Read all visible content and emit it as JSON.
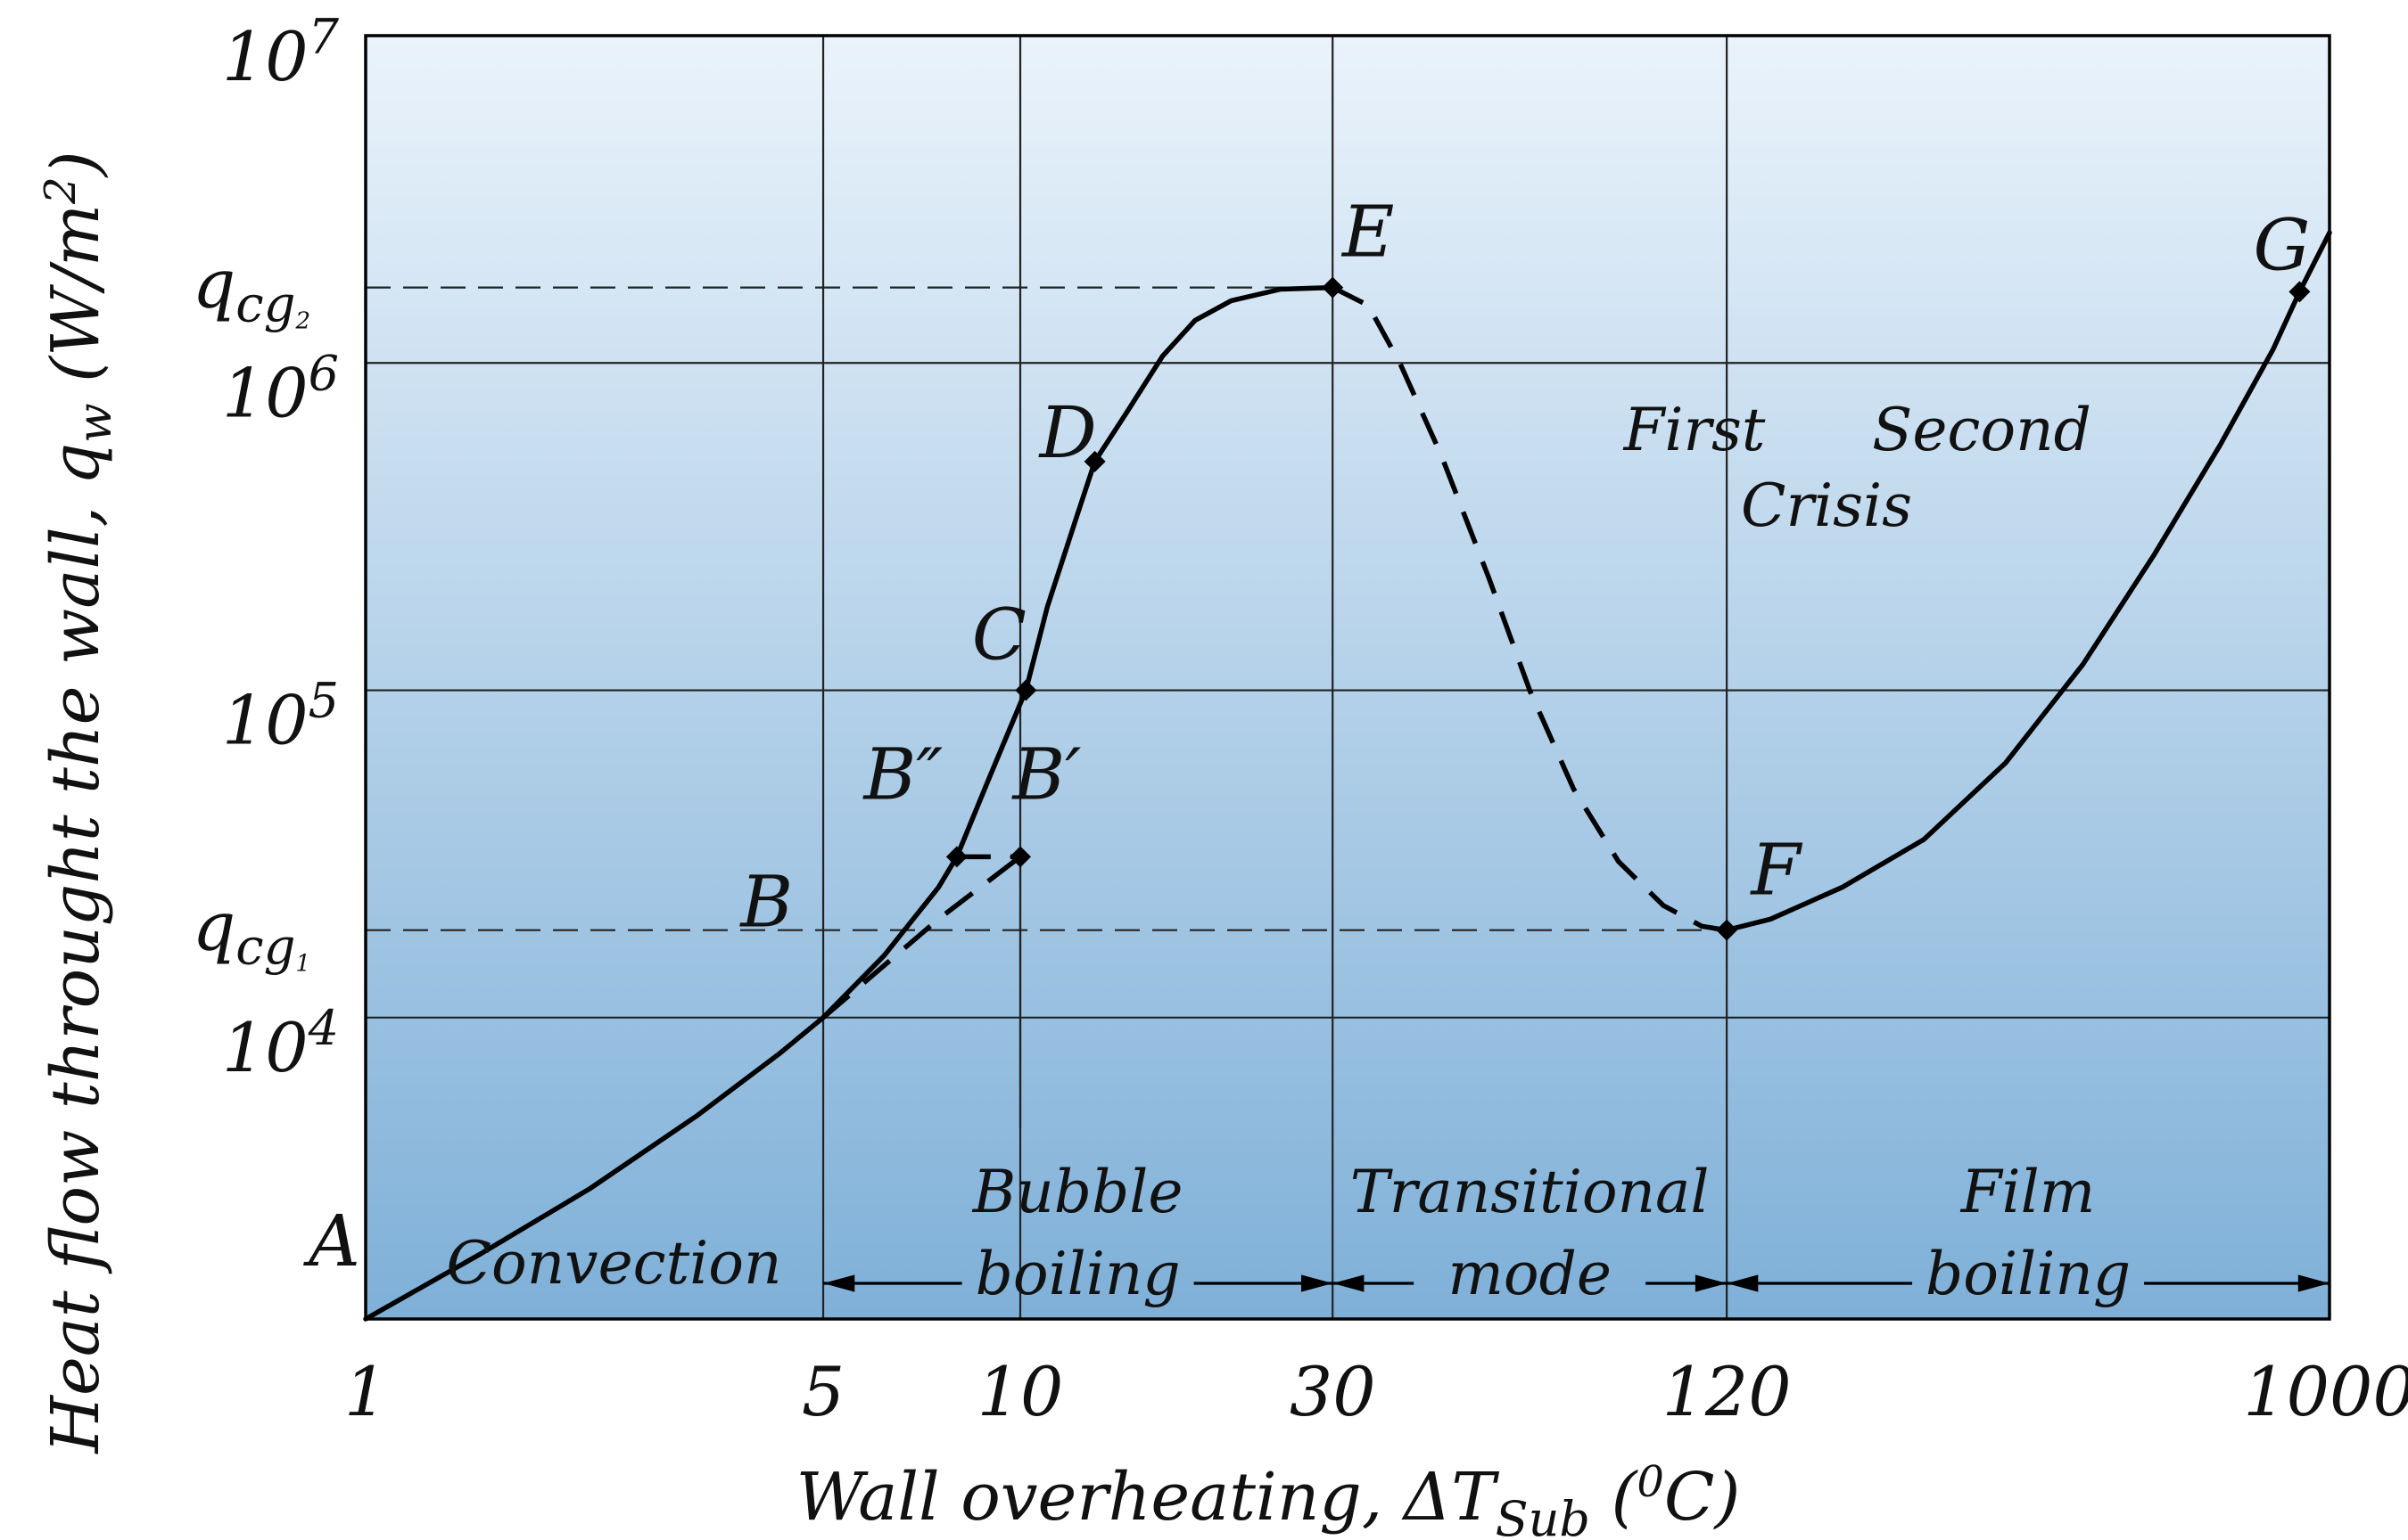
{
  "chart_data": {
    "type": "line",
    "title": "",
    "xscale": "log",
    "yscale": "log",
    "xlabel": {
      "prefix": "Wall overheating, ",
      "delta": "ΔT",
      "sub": "Sub",
      "unit_open": " (",
      "unit_sup": "0",
      "unit_close": "C)"
    },
    "ylabel": {
      "prefix": "Heat flow throught the wall, ",
      "var": "q",
      "var_sub": "w",
      "unit_open": " (W/m",
      "unit_sup": "2",
      "unit_close": ")"
    },
    "xlim": [
      1,
      1000
    ],
    "ylim": [
      1200,
      10000000
    ],
    "x_ticks": [
      {
        "value": 1,
        "label": "1"
      },
      {
        "value": 5,
        "label": "5"
      },
      {
        "value": 10,
        "label": "10"
      },
      {
        "value": 30,
        "label": "30"
      },
      {
        "value": 120,
        "label": "120"
      },
      {
        "value": 1000,
        "label": "1000"
      }
    ],
    "y_ticks": [
      {
        "value": 10000,
        "base": "10",
        "exp": "4"
      },
      {
        "value": 100000,
        "base": "10",
        "exp": "5"
      },
      {
        "value": 1000000,
        "base": "10",
        "exp": "6"
      },
      {
        "value": 10000000,
        "base": "10",
        "exp": "7"
      }
    ],
    "y_refs": [
      {
        "value": 1700000,
        "sym": "q",
        "sub": "cg",
        "subsub": "2"
      },
      {
        "value": 18500,
        "sym": "q",
        "sub": "cg",
        "subsub": "1"
      }
    ],
    "points": [
      {
        "name": "A",
        "x": 1.0,
        "y": 1200,
        "marker": false
      },
      {
        "name": "B",
        "x": 5.0,
        "y": 10000,
        "marker": false
      },
      {
        "name": "B″",
        "x": 8.0,
        "y": 31000,
        "marker": true
      },
      {
        "name": "B′",
        "x": 10.0,
        "y": 31000,
        "marker": true
      },
      {
        "name": "C",
        "x": 10.2,
        "y": 100000,
        "marker": true
      },
      {
        "name": "D",
        "x": 13.0,
        "y": 500000,
        "marker": true
      },
      {
        "name": "E",
        "x": 30.0,
        "y": 1700000,
        "marker": true
      },
      {
        "name": "F",
        "x": 120.0,
        "y": 18500,
        "marker": true
      },
      {
        "name": "G",
        "x": 900.0,
        "y": 1650000,
        "marker": true
      }
    ],
    "series": [
      {
        "name": "nucleate-boiling",
        "style": "solid",
        "x": [
          1.0,
          1.5,
          2.2,
          3.2,
          4.3,
          5.0,
          6.2,
          7.5,
          8.0,
          9.0,
          10.2,
          11.0,
          12.2,
          13.0,
          14.5,
          16.5,
          18.5,
          21,
          25,
          30
        ],
        "y": [
          1200,
          1900,
          3000,
          5000,
          7800,
          10000,
          15500,
          25000,
          31000,
          55000,
          100000,
          180000,
          340000,
          500000,
          700000,
          1050000,
          1350000,
          1550000,
          1680000,
          1700000
        ]
      },
      {
        "name": "transition-boiling",
        "style": "dashed",
        "x": [
          30,
          34,
          38,
          44,
          52,
          60,
          70,
          82,
          96,
          110,
          120
        ],
        "y": [
          1700000,
          1500000,
          1000000,
          520000,
          220000,
          100000,
          50000,
          30000,
          22000,
          19000,
          18500
        ]
      },
      {
        "name": "film-boiling",
        "style": "solid",
        "x": [
          120,
          140,
          180,
          240,
          320,
          420,
          540,
          680,
          820,
          900,
          1000
        ],
        "y": [
          18500,
          20000,
          25000,
          35000,
          60000,
          120000,
          260000,
          560000,
          1100000,
          1650000,
          2500000
        ]
      },
      {
        "name": "convection-extrapolation",
        "style": "dashed",
        "x": [
          5.0,
          7.5,
          10.0
        ],
        "y": [
          10000,
          20000,
          31000
        ]
      }
    ],
    "annotations": {
      "first": "First",
      "second": "Second",
      "crisis": "Crisis"
    },
    "regions": [
      {
        "name": "convection",
        "lines": [
          "Convection"
        ],
        "from": 1,
        "to": 5
      },
      {
        "name": "bubble-boiling",
        "lines": [
          "Bubble",
          "boiling"
        ],
        "from": 5,
        "to": 30
      },
      {
        "name": "transitional-mode",
        "lines": [
          "Transitional",
          "mode"
        ],
        "from": 30,
        "to": 120
      },
      {
        "name": "film-boiling",
        "lines": [
          "Film",
          "boiling"
        ],
        "from": 120,
        "to": 1000
      }
    ],
    "grid": true,
    "background": {
      "top": "#eaf3fb",
      "bottom": "#7fb0d8"
    }
  }
}
